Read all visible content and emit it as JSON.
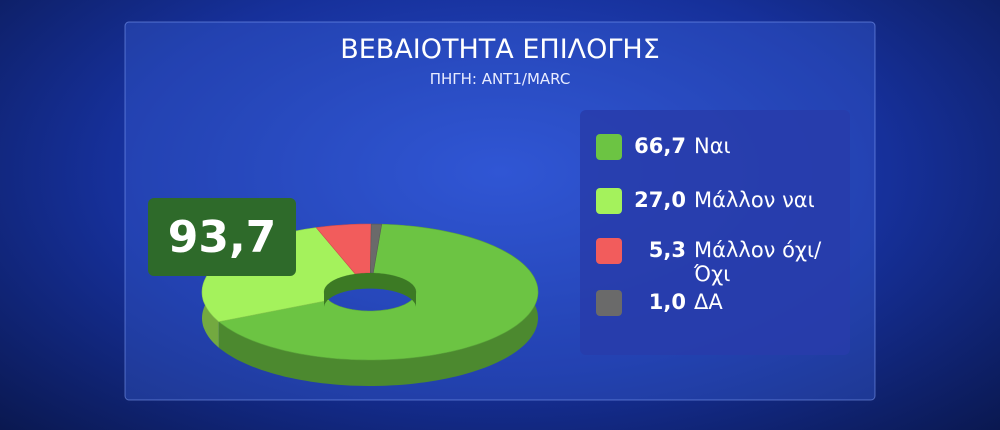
{
  "chart_data": {
    "type": "pie",
    "title": "ΒΕΒΑΙΟΤΗΤΑ ΕΠΙΛΟΓΗΣ",
    "subtitle": "ΠΗΓΗ: ΑΝΤ1/MARC",
    "annotation": "93,7",
    "categories": [
      "Ναι",
      "Μάλλον ναι",
      "Μάλλον όχι/ Όχι",
      "ΔΑ"
    ],
    "values": [
      66.7,
      27.0,
      5.3,
      1.0
    ],
    "value_labels": [
      "66,7",
      "27,0",
      "5,3",
      "1,0"
    ],
    "colors": [
      "#6cc443",
      "#a4f25c",
      "#f25c5c",
      "#6a6a6a"
    ]
  }
}
